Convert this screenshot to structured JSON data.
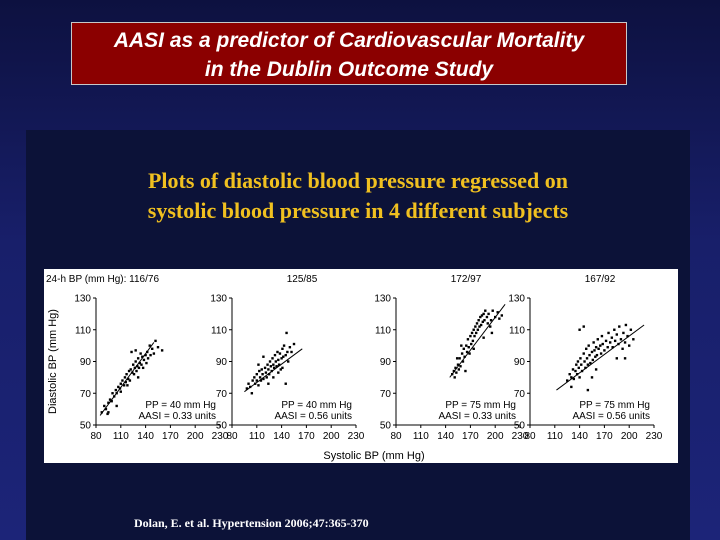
{
  "slide": {
    "title_line1": "AASI as a predictor of Cardiovascular Mortality",
    "title_line2": "in the Dublin Outcome Study",
    "subtitle_line1": "Plots of diastolic blood pressure regressed on",
    "subtitle_line2": "systolic blood pressure in 4 different subjects",
    "citation": "Dolan, E. et al. Hypertension 2006;47:365-370"
  },
  "colors": {
    "title_bg": "#8b0000",
    "subtitle": "#f0c020",
    "panel_bg": "#0c1238",
    "slide_bg": "#181f6a"
  },
  "chart_data": {
    "type": "scatter",
    "bp_axis_prefix": "24-h BP (mm Hg):",
    "xlabel": "Systolic BP (mm Hg)",
    "ylabel": "Diastolic BP (mm Hg)",
    "xlim": [
      80,
      230
    ],
    "ylim": [
      50,
      130
    ],
    "xticks": [
      80,
      110,
      140,
      170,
      200,
      230
    ],
    "yticks": [
      50,
      70,
      90,
      110,
      130
    ],
    "panels": [
      {
        "bp": "116/76",
        "pp": "PP = 40 mm Hg",
        "aasi": "AASI = 0.33 units",
        "line": [
          [
            85,
            56
          ],
          [
            150,
            102
          ]
        ],
        "points": [
          [
            87,
            58
          ],
          [
            90,
            62
          ],
          [
            92,
            60
          ],
          [
            94,
            57
          ],
          [
            95,
            64
          ],
          [
            97,
            66
          ],
          [
            99,
            65
          ],
          [
            100,
            70
          ],
          [
            102,
            68
          ],
          [
            104,
            72
          ],
          [
            105,
            70
          ],
          [
            107,
            74
          ],
          [
            109,
            73
          ],
          [
            110,
            76
          ],
          [
            110,
            71
          ],
          [
            112,
            78
          ],
          [
            114,
            75
          ],
          [
            115,
            80
          ],
          [
            116,
            77
          ],
          [
            117,
            82
          ],
          [
            119,
            79
          ],
          [
            120,
            84
          ],
          [
            121,
            78
          ],
          [
            122,
            85
          ],
          [
            124,
            83
          ],
          [
            125,
            88
          ],
          [
            126,
            82
          ],
          [
            127,
            86
          ],
          [
            128,
            90
          ],
          [
            129,
            84
          ],
          [
            130,
            87
          ],
          [
            131,
            92
          ],
          [
            132,
            86
          ],
          [
            133,
            89
          ],
          [
            134,
            95
          ],
          [
            135,
            88
          ],
          [
            136,
            93
          ],
          [
            137,
            86
          ],
          [
            138,
            91
          ],
          [
            140,
            94
          ],
          [
            141,
            89
          ],
          [
            142,
            96
          ],
          [
            143,
            92
          ],
          [
            145,
            100
          ],
          [
            146,
            94
          ],
          [
            148,
            98
          ],
          [
            150,
            95
          ],
          [
            152,
            103
          ],
          [
            155,
            99
          ],
          [
            160,
            97
          ],
          [
            95,
            58
          ],
          [
            105,
            62
          ],
          [
            118,
            75
          ],
          [
            123,
            96
          ],
          [
            128,
            97
          ],
          [
            131,
            80
          ]
        ]
      },
      {
        "bp": "125/85",
        "pp": "PP = 40 mm Hg",
        "aasi": "AASI = 0.56 units",
        "line": [
          [
            95,
            71
          ],
          [
            165,
            98
          ]
        ],
        "points": [
          [
            98,
            73
          ],
          [
            100,
            76
          ],
          [
            102,
            74
          ],
          [
            104,
            70
          ],
          [
            105,
            78
          ],
          [
            107,
            80
          ],
          [
            108,
            76
          ],
          [
            110,
            82
          ],
          [
            110,
            78
          ],
          [
            112,
            75
          ],
          [
            113,
            84
          ],
          [
            114,
            80
          ],
          [
            115,
            78
          ],
          [
            116,
            85
          ],
          [
            117,
            82
          ],
          [
            118,
            79
          ],
          [
            120,
            86
          ],
          [
            121,
            83
          ],
          [
            122,
            80
          ],
          [
            123,
            88
          ],
          [
            124,
            85
          ],
          [
            125,
            82
          ],
          [
            126,
            90
          ],
          [
            127,
            87
          ],
          [
            128,
            84
          ],
          [
            129,
            92
          ],
          [
            130,
            88
          ],
          [
            131,
            86
          ],
          [
            132,
            94
          ],
          [
            133,
            90
          ],
          [
            134,
            87
          ],
          [
            135,
            96
          ],
          [
            136,
            91
          ],
          [
            137,
            88
          ],
          [
            138,
            95
          ],
          [
            139,
            85
          ],
          [
            140,
            92
          ],
          [
            141,
            98
          ],
          [
            142,
            93
          ],
          [
            143,
            100
          ],
          [
            145,
            94
          ],
          [
            146,
            108
          ],
          [
            147,
            96
          ],
          [
            148,
            90
          ],
          [
            150,
            99
          ],
          [
            152,
            96
          ],
          [
            155,
            101
          ],
          [
            112,
            88
          ],
          [
            118,
            93
          ],
          [
            124,
            76
          ],
          [
            130,
            80
          ],
          [
            136,
            83
          ],
          [
            141,
            86
          ],
          [
            145,
            76
          ]
        ]
      },
      {
        "bp": "172/97",
        "pp": "75 mm Hg",
        "pp_full": "PP = 75 mm Hg",
        "aasi": "AASI = 0.33 units",
        "line": [
          [
            145,
            80
          ],
          [
            212,
            126
          ]
        ],
        "points": [
          [
            148,
            82
          ],
          [
            150,
            84
          ],
          [
            151,
            80
          ],
          [
            152,
            86
          ],
          [
            153,
            83
          ],
          [
            155,
            88
          ],
          [
            156,
            85
          ],
          [
            157,
            92
          ],
          [
            158,
            87
          ],
          [
            160,
            95
          ],
          [
            161,
            90
          ],
          [
            162,
            98
          ],
          [
            163,
            93
          ],
          [
            165,
            100
          ],
          [
            166,
            96
          ],
          [
            167,
            104
          ],
          [
            168,
            99
          ],
          [
            170,
            106
          ],
          [
            171,
            101
          ],
          [
            172,
            108
          ],
          [
            173,
            103
          ],
          [
            174,
            110
          ],
          [
            175,
            106
          ],
          [
            176,
            112
          ],
          [
            177,
            108
          ],
          [
            178,
            114
          ],
          [
            179,
            110
          ],
          [
            180,
            116
          ],
          [
            181,
            112
          ],
          [
            182,
            118
          ],
          [
            183,
            113
          ],
          [
            184,
            119
          ],
          [
            185,
            115
          ],
          [
            186,
            120
          ],
          [
            187,
            116
          ],
          [
            188,
            122
          ],
          [
            190,
            118
          ],
          [
            191,
            114
          ],
          [
            192,
            120
          ],
          [
            194,
            112
          ],
          [
            195,
            116
          ],
          [
            197,
            122
          ],
          [
            200,
            118
          ],
          [
            203,
            121
          ],
          [
            205,
            117
          ],
          [
            208,
            119
          ],
          [
            154,
            92
          ],
          [
            159,
            100
          ],
          [
            164,
            84
          ],
          [
            169,
            95
          ],
          [
            174,
            98
          ],
          [
            186,
            105
          ],
          [
            196,
            108
          ]
        ]
      },
      {
        "bp": "167/92",
        "pp_full": "PP = 75 mm Hg",
        "aasi": "AASI = 0.56 units",
        "line": [
          [
            112,
            72
          ],
          [
            218,
            113
          ]
        ],
        "points": [
          [
            125,
            78
          ],
          [
            128,
            82
          ],
          [
            130,
            80
          ],
          [
            132,
            85
          ],
          [
            133,
            79
          ],
          [
            135,
            84
          ],
          [
            136,
            88
          ],
          [
            137,
            82
          ],
          [
            138,
            90
          ],
          [
            139,
            86
          ],
          [
            140,
            80
          ],
          [
            141,
            92
          ],
          [
            142,
            88
          ],
          [
            143,
            84
          ],
          [
            145,
            95
          ],
          [
            146,
            90
          ],
          [
            147,
            86
          ],
          [
            148,
            98
          ],
          [
            149,
            92
          ],
          [
            150,
            88
          ],
          [
            151,
            100
          ],
          [
            152,
            94
          ],
          [
            153,
            89
          ],
          [
            155,
            96
          ],
          [
            156,
            91
          ],
          [
            157,
            102
          ],
          [
            158,
            97
          ],
          [
            159,
            93
          ],
          [
            160,
            99
          ],
          [
            161,
            94
          ],
          [
            162,
            104
          ],
          [
            163,
            98
          ],
          [
            165,
            100
          ],
          [
            166,
            95
          ],
          [
            167,
            106
          ],
          [
            168,
            101
          ],
          [
            170,
            97
          ],
          [
            172,
            103
          ],
          [
            174,
            99
          ],
          [
            175,
            108
          ],
          [
            177,
            102
          ],
          [
            179,
            105
          ],
          [
            180,
            99
          ],
          [
            182,
            110
          ],
          [
            183,
            103
          ],
          [
            185,
            107
          ],
          [
            187,
            101
          ],
          [
            188,
            112
          ],
          [
            190,
            104
          ],
          [
            192,
            98
          ],
          [
            193,
            108
          ],
          [
            195,
            102
          ],
          [
            196,
            113
          ],
          [
            198,
            106
          ],
          [
            200,
            100
          ],
          [
            202,
            110
          ],
          [
            205,
            104
          ],
          [
            140,
            110
          ],
          [
            145,
            112
          ],
          [
            150,
            72
          ],
          [
            155,
            80
          ],
          [
            160,
            85
          ],
          [
            130,
            74
          ],
          [
            185,
            92
          ],
          [
            195,
            92
          ]
        ]
      }
    ]
  }
}
